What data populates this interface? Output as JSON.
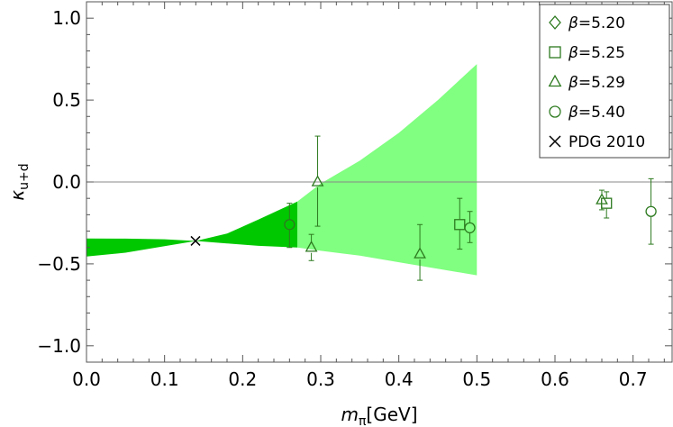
{
  "chart_data": {
    "type": "scatter",
    "xlabel": "m",
    "xlabel_sub": "π",
    "xlabel_unit": "[GeV]",
    "ylabel": "κ",
    "ylabel_sub": "u+d",
    "xlim": [
      0.0,
      0.75
    ],
    "ylim": [
      -1.1,
      1.1
    ],
    "xticks": [
      0.0,
      0.1,
      0.2,
      0.3,
      0.4,
      0.5,
      0.6,
      0.7
    ],
    "xtick_labels": [
      "0.0",
      "0.1",
      "0.2",
      "0.3",
      "0.4",
      "0.5",
      "0.6",
      "0.7"
    ],
    "yticks": [
      -1.0,
      -0.5,
      0.0,
      0.5,
      1.0
    ],
    "ytick_labels": [
      "−1.0",
      "−0.5",
      "0.0",
      "0.5",
      "1.0"
    ],
    "reference_line_y": 0.0,
    "legend_position": "top-right",
    "bands": [
      {
        "name": "dark-band",
        "color": "#00c800",
        "x": [
          0.0,
          0.05,
          0.1,
          0.14,
          0.18,
          0.22,
          0.27
        ],
        "upper": [
          -0.345,
          -0.346,
          -0.35,
          -0.36,
          -0.315,
          -0.23,
          -0.12
        ],
        "lower": [
          -0.455,
          -0.432,
          -0.392,
          -0.36,
          -0.375,
          -0.39,
          -0.4
        ]
      },
      {
        "name": "light-band",
        "color": "#80ff80",
        "x": [
          0.27,
          0.3,
          0.35,
          0.4,
          0.45,
          0.5
        ],
        "upper": [
          -0.12,
          -0.01,
          0.13,
          0.3,
          0.5,
          0.72
        ],
        "lower": [
          -0.4,
          -0.42,
          -0.45,
          -0.49,
          -0.53,
          -0.57
        ]
      }
    ],
    "series": [
      {
        "name": "β=5.20",
        "marker": "diamond",
        "points": []
      },
      {
        "name": "β=5.25",
        "marker": "square",
        "points": [
          {
            "x": 0.478,
            "y": -0.26,
            "lo": -0.41,
            "hi": -0.1
          },
          {
            "x": 0.666,
            "y": -0.13,
            "lo": -0.22,
            "hi": -0.06
          }
        ]
      },
      {
        "name": "β=5.29",
        "marker": "triangle",
        "points": [
          {
            "x": 0.288,
            "y": -0.4,
            "lo": -0.48,
            "hi": -0.32
          },
          {
            "x": 0.296,
            "y": 0.0,
            "lo": -0.27,
            "hi": 0.28
          },
          {
            "x": 0.427,
            "y": -0.44,
            "lo": -0.6,
            "hi": -0.26
          },
          {
            "x": 0.66,
            "y": -0.11,
            "lo": -0.17,
            "hi": -0.05
          }
        ]
      },
      {
        "name": "β=5.40",
        "marker": "circle",
        "points": [
          {
            "x": 0.26,
            "y": -0.26,
            "lo": -0.4,
            "hi": -0.13
          },
          {
            "x": 0.491,
            "y": -0.28,
            "lo": -0.37,
            "hi": -0.18
          },
          {
            "x": 0.723,
            "y": -0.18,
            "lo": -0.38,
            "hi": 0.02
          }
        ]
      },
      {
        "name": "PDG 2010",
        "marker": "cross",
        "points": [
          {
            "x": 0.1396,
            "y": -0.36
          }
        ]
      }
    ],
    "legend": [
      {
        "marker": "diamond",
        "prefix": "β",
        "label": "=5.20"
      },
      {
        "marker": "square",
        "prefix": "β",
        "label": "=5.25"
      },
      {
        "marker": "triangle",
        "prefix": "β",
        "label": "=5.29"
      },
      {
        "marker": "circle",
        "prefix": "β",
        "label": "=5.40"
      },
      {
        "marker": "cross",
        "prefix": "",
        "label": "PDG 2010"
      }
    ],
    "colors": {
      "series": "#2d7a1f",
      "cross": "#000000",
      "frame": "#555555",
      "zero_line": "#888888"
    }
  }
}
